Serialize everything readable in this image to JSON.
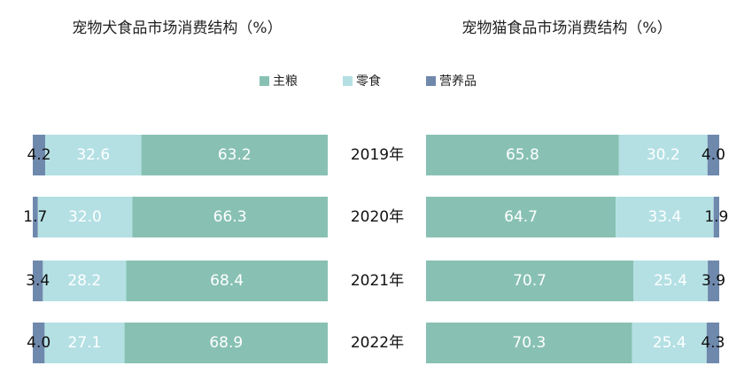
{
  "chart_data": [
    {
      "type": "stacked-bar-horizontal",
      "title": "宠物犬食品市场消费结构（%）",
      "x_reversed": true,
      "xlim": [
        0,
        100
      ],
      "categories": [
        "2019年",
        "2020年",
        "2021年",
        "2022年"
      ],
      "series": [
        {
          "name": "主粮",
          "color": "#88c1b3",
          "values": [
            63.2,
            66.3,
            68.4,
            68.9
          ],
          "value_labels": [
            "63.2",
            "66.3",
            "68.4",
            "68.9"
          ]
        },
        {
          "name": "零食",
          "color": "#b4e0e4",
          "values": [
            32.6,
            32.0,
            28.2,
            27.1
          ],
          "value_labels": [
            "32.6",
            "32.0",
            "28.2",
            "27.1"
          ]
        },
        {
          "name": "营养品",
          "color": "#6f89ad",
          "values": [
            4.2,
            1.7,
            3.4,
            4.0
          ],
          "value_labels": [
            "4.2",
            "1.7",
            "3.4",
            "4.0"
          ]
        }
      ]
    },
    {
      "type": "stacked-bar-horizontal",
      "title": "宠物猫食品市场消费结构（%）",
      "x_reversed": false,
      "xlim": [
        0,
        100
      ],
      "series": [
        {
          "color": "#88c1b3",
          "values": [
            65.8,
            64.7,
            70.7,
            70.3
          ],
          "value_labels": [
            "65.8",
            "64.7",
            "70.7",
            "70.3"
          ]
        },
        {
          "color": "#b4e0e4",
          "values": [
            30.2,
            33.4,
            25.4,
            25.4
          ],
          "value_labels": [
            "30.2",
            "33.4",
            "25.4",
            "25.4"
          ]
        },
        {
          "color": "#6f89ad",
          "values": [
            4.0,
            1.9,
            3.9,
            4.3
          ],
          "value_labels": [
            "4.0",
            "1.9",
            "3.9",
            "4.3"
          ]
        }
      ]
    }
  ]
}
